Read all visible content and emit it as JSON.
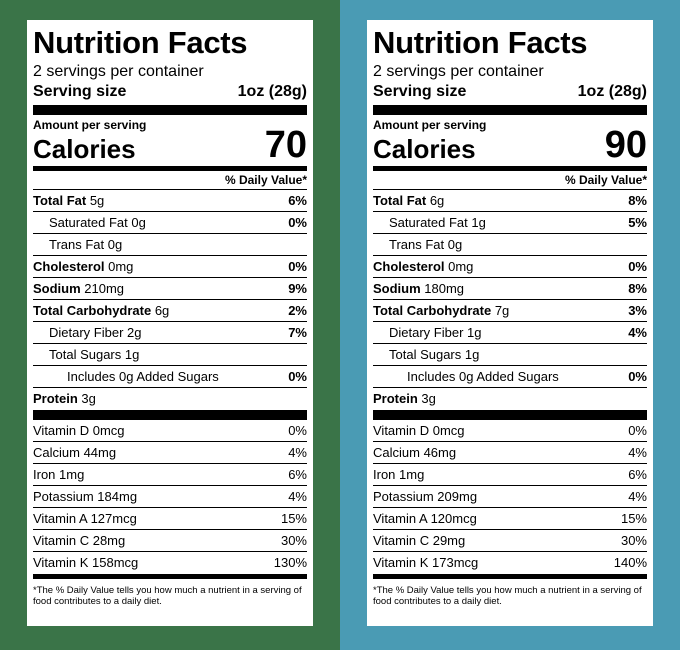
{
  "labels": [
    {
      "title": "Nutrition Facts",
      "servings": "2 servings per container",
      "serving_size_label": "Serving size",
      "serving_size_value": "1oz (28g)",
      "amount_per_serving": "Amount per serving",
      "calories_label": "Calories",
      "calories_value": "70",
      "dv_header": "% Daily Value*",
      "nutrients": [
        {
          "name_bold": "Total Fat",
          "name": " 5g",
          "pct": "6%"
        },
        {
          "name_bold": "",
          "name": "Saturated Fat  0g",
          "pct": "0%"
        },
        {
          "name_bold": "",
          "name": "Trans Fat 0g",
          "pct": ""
        },
        {
          "name_bold": "Cholesterol",
          "name": " 0mg",
          "pct": "0%"
        },
        {
          "name_bold": "Sodium",
          "name": " 210mg",
          "pct": "9%"
        },
        {
          "name_bold": "Total Carbohydrate",
          "name": " 6g",
          "pct": "2%"
        },
        {
          "name_bold": "",
          "name": "Dietary Fiber  2g",
          "pct": "7%"
        },
        {
          "name_bold": "",
          "name": "Total Sugars  1g",
          "pct": ""
        },
        {
          "name_bold": "",
          "name": "Includes 0g Added Sugars",
          "pct": "0%"
        },
        {
          "name_bold": "Protein",
          "name": " 3g",
          "pct": ""
        }
      ],
      "vitamins": [
        {
          "name": "Vitamin D  0mcg",
          "pct": "0%"
        },
        {
          "name": "Calcium 44mg",
          "pct": "4%"
        },
        {
          "name": "Iron 1mg",
          "pct": "6%"
        },
        {
          "name": "Potassium 184mg",
          "pct": "4%"
        },
        {
          "name": "Vitamin A  127mcg",
          "pct": "15%"
        },
        {
          "name": "Vitamin C  28mg",
          "pct": "30%"
        },
        {
          "name": "Vitamin K  158mcg",
          "pct": "130%"
        }
      ],
      "footnote": "*The % Daily Value tells you how much a nutrient in a serving of food contributes to a daily diet."
    },
    {
      "title": "Nutrition Facts",
      "servings": "2 servings per container",
      "serving_size_label": "Serving size",
      "serving_size_value": "1oz (28g)",
      "amount_per_serving": "Amount per serving",
      "calories_label": "Calories",
      "calories_value": "90",
      "dv_header": "% Daily Value*",
      "nutrients": [
        {
          "name_bold": "Total Fat",
          "name": " 6g",
          "pct": "8%"
        },
        {
          "name_bold": "",
          "name": "Saturated Fat  1g",
          "pct": "5%"
        },
        {
          "name_bold": "",
          "name": "Trans Fat 0g",
          "pct": ""
        },
        {
          "name_bold": "Cholesterol",
          "name": " 0mg",
          "pct": "0%"
        },
        {
          "name_bold": "Sodium",
          "name": " 180mg",
          "pct": "8%"
        },
        {
          "name_bold": "Total Carbohydrate",
          "name": " 7g",
          "pct": "3%"
        },
        {
          "name_bold": "",
          "name": "Dietary Fiber  1g",
          "pct": "4%"
        },
        {
          "name_bold": "",
          "name": "Total Sugars  1g",
          "pct": ""
        },
        {
          "name_bold": "",
          "name": "Includes 0g Added Sugars",
          "pct": "0%"
        },
        {
          "name_bold": "Protein",
          "name": " 3g",
          "pct": ""
        }
      ],
      "vitamins": [
        {
          "name": "Vitamin D  0mcg",
          "pct": "0%"
        },
        {
          "name": "Calcium 46mg",
          "pct": "4%"
        },
        {
          "name": "Iron 1mg",
          "pct": "6%"
        },
        {
          "name": "Potassium 209mg",
          "pct": "4%"
        },
        {
          "name": "Vitamin A  120mcg",
          "pct": "15%"
        },
        {
          "name": "Vitamin C  29mg",
          "pct": "30%"
        },
        {
          "name": "Vitamin K  173mcg",
          "pct": "140%"
        }
      ],
      "footnote": "*The % Daily Value tells you how much a nutrient in a serving of food contributes to a daily diet."
    }
  ],
  "colors": {
    "left_background": "#3a7448",
    "right_background": "#4a9bb4"
  }
}
